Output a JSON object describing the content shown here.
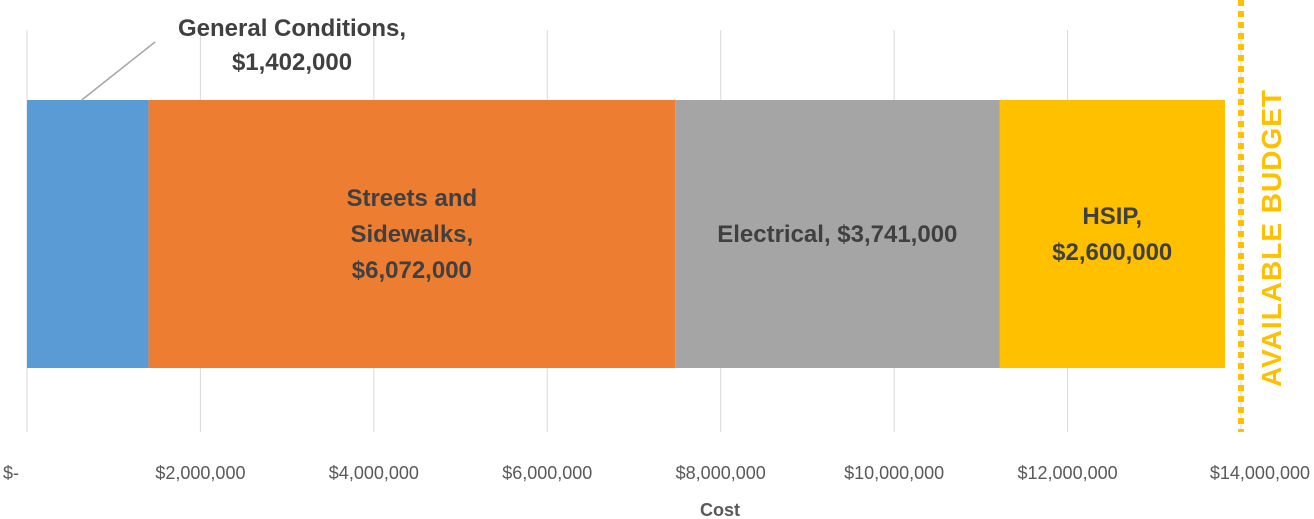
{
  "chart_data": {
    "type": "bar",
    "orientation": "horizontal-stacked",
    "xlabel": "Cost",
    "xlim": [
      0,
      14000000
    ],
    "x_ticks": [
      0,
      2000000,
      4000000,
      6000000,
      8000000,
      10000000,
      12000000,
      14000000
    ],
    "x_tick_labels": [
      "$-",
      "$2,000,000",
      "$4,000,000",
      "$6,000,000",
      "$8,000,000",
      "$10,000,000",
      "$12,000,000",
      "$14,000,000"
    ],
    "grid": "vertical",
    "series": [
      {
        "name": "General Conditions",
        "value": 1402000,
        "color": "#5B9BD5",
        "label_lines": [
          "General Conditions,",
          "$1,402,000"
        ],
        "label_style": "callout"
      },
      {
        "name": "Streets and Sidewalks",
        "value": 6072000,
        "color": "#ED7D31",
        "label_lines": [
          "Streets and",
          "Sidewalks,",
          "$6,072,000"
        ],
        "label_style": "inside"
      },
      {
        "name": "Electrical",
        "value": 3741000,
        "color": "#A5A5A5",
        "label_lines": [
          "Electrical,  $3,741,000"
        ],
        "label_style": "inside"
      },
      {
        "name": "HSIP",
        "value": 2600000,
        "color": "#FFC000",
        "label_lines": [
          "HSIP,",
          "$2,600,000"
        ],
        "label_style": "inside"
      }
    ],
    "budget_line": {
      "value": 14000000,
      "label": "AVAILABLE BUDGET",
      "color": "#FFC000"
    }
  }
}
